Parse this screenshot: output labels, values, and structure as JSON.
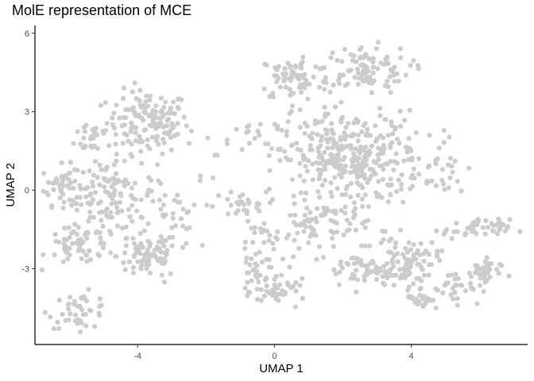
{
  "chart_data": {
    "type": "scatter",
    "title": "MolE representation of MCE",
    "xlabel": "UMAP 1",
    "ylabel": "UMAP 2",
    "xlim": [
      -7.0,
      7.4
    ],
    "ylim": [
      -5.9,
      6.3
    ],
    "x_ticks": [
      -4,
      0,
      4
    ],
    "y_ticks": [
      -3,
      0,
      3,
      6
    ],
    "grid": false,
    "point_color": "#cccccc",
    "axis_color": "#000000",
    "clusters": [
      {
        "cx": -3.7,
        "cy": 2.6,
        "sx": 0.8,
        "sy": 0.8,
        "n": 140
      },
      {
        "cx": -5.3,
        "cy": 2.1,
        "sx": 0.35,
        "sy": 0.5,
        "n": 25
      },
      {
        "cx": -6.2,
        "cy": 0.2,
        "sx": 0.4,
        "sy": 0.5,
        "n": 45
      },
      {
        "cx": -4.8,
        "cy": -0.2,
        "sx": 0.9,
        "sy": 0.9,
        "n": 120
      },
      {
        "cx": -3.7,
        "cy": -2.5,
        "sx": 0.6,
        "sy": 0.6,
        "n": 85
      },
      {
        "cx": -5.6,
        "cy": -2.1,
        "sx": 0.7,
        "sy": 0.5,
        "n": 60
      },
      {
        "cx": -5.7,
        "cy": -4.6,
        "sx": 0.6,
        "sy": 0.45,
        "n": 45
      },
      {
        "cx": -3.0,
        "cy": -1.1,
        "sx": 0.5,
        "sy": 0.8,
        "n": 30
      },
      {
        "cx": -1.9,
        "cy": 0.7,
        "sx": 0.5,
        "sy": 1.0,
        "n": 10
      },
      {
        "cx": -1.0,
        "cy": -0.6,
        "sx": 0.5,
        "sy": 0.35,
        "n": 25
      },
      {
        "cx": -0.6,
        "cy": 1.9,
        "sx": 0.5,
        "sy": 0.5,
        "n": 15
      },
      {
        "cx": 0.6,
        "cy": 4.3,
        "sx": 0.7,
        "sy": 0.6,
        "n": 70
      },
      {
        "cx": 2.6,
        "cy": 4.6,
        "sx": 0.9,
        "sy": 0.6,
        "n": 100
      },
      {
        "cx": 2.2,
        "cy": 1.2,
        "sx": 1.4,
        "sy": 1.2,
        "n": 360
      },
      {
        "cx": 1.3,
        "cy": -1.4,
        "sx": 0.9,
        "sy": 0.7,
        "n": 70
      },
      {
        "cx": -0.3,
        "cy": -1.9,
        "sx": 0.5,
        "sy": 0.6,
        "n": 20
      },
      {
        "cx": -0.5,
        "cy": -3.1,
        "sx": 0.4,
        "sy": 0.6,
        "n": 30
      },
      {
        "cx": 0.2,
        "cy": -3.9,
        "sx": 0.5,
        "sy": 0.3,
        "n": 40
      },
      {
        "cx": 2.6,
        "cy": -3.1,
        "sx": 0.8,
        "sy": 0.5,
        "n": 60
      },
      {
        "cx": 3.9,
        "cy": -2.7,
        "sx": 0.6,
        "sy": 0.6,
        "n": 80
      },
      {
        "cx": 4.3,
        "cy": -4.1,
        "sx": 0.3,
        "sy": 0.3,
        "n": 30
      },
      {
        "cx": 5.3,
        "cy": -3.7,
        "sx": 0.5,
        "sy": 0.4,
        "n": 25
      },
      {
        "cx": 6.0,
        "cy": -3.2,
        "sx": 0.4,
        "sy": 0.4,
        "n": 35
      },
      {
        "cx": 5.9,
        "cy": -1.5,
        "sx": 0.65,
        "sy": 0.25,
        "n": 45
      },
      {
        "cx": 4.9,
        "cy": 0.9,
        "sx": 0.5,
        "sy": 0.9,
        "n": 25
      }
    ]
  }
}
